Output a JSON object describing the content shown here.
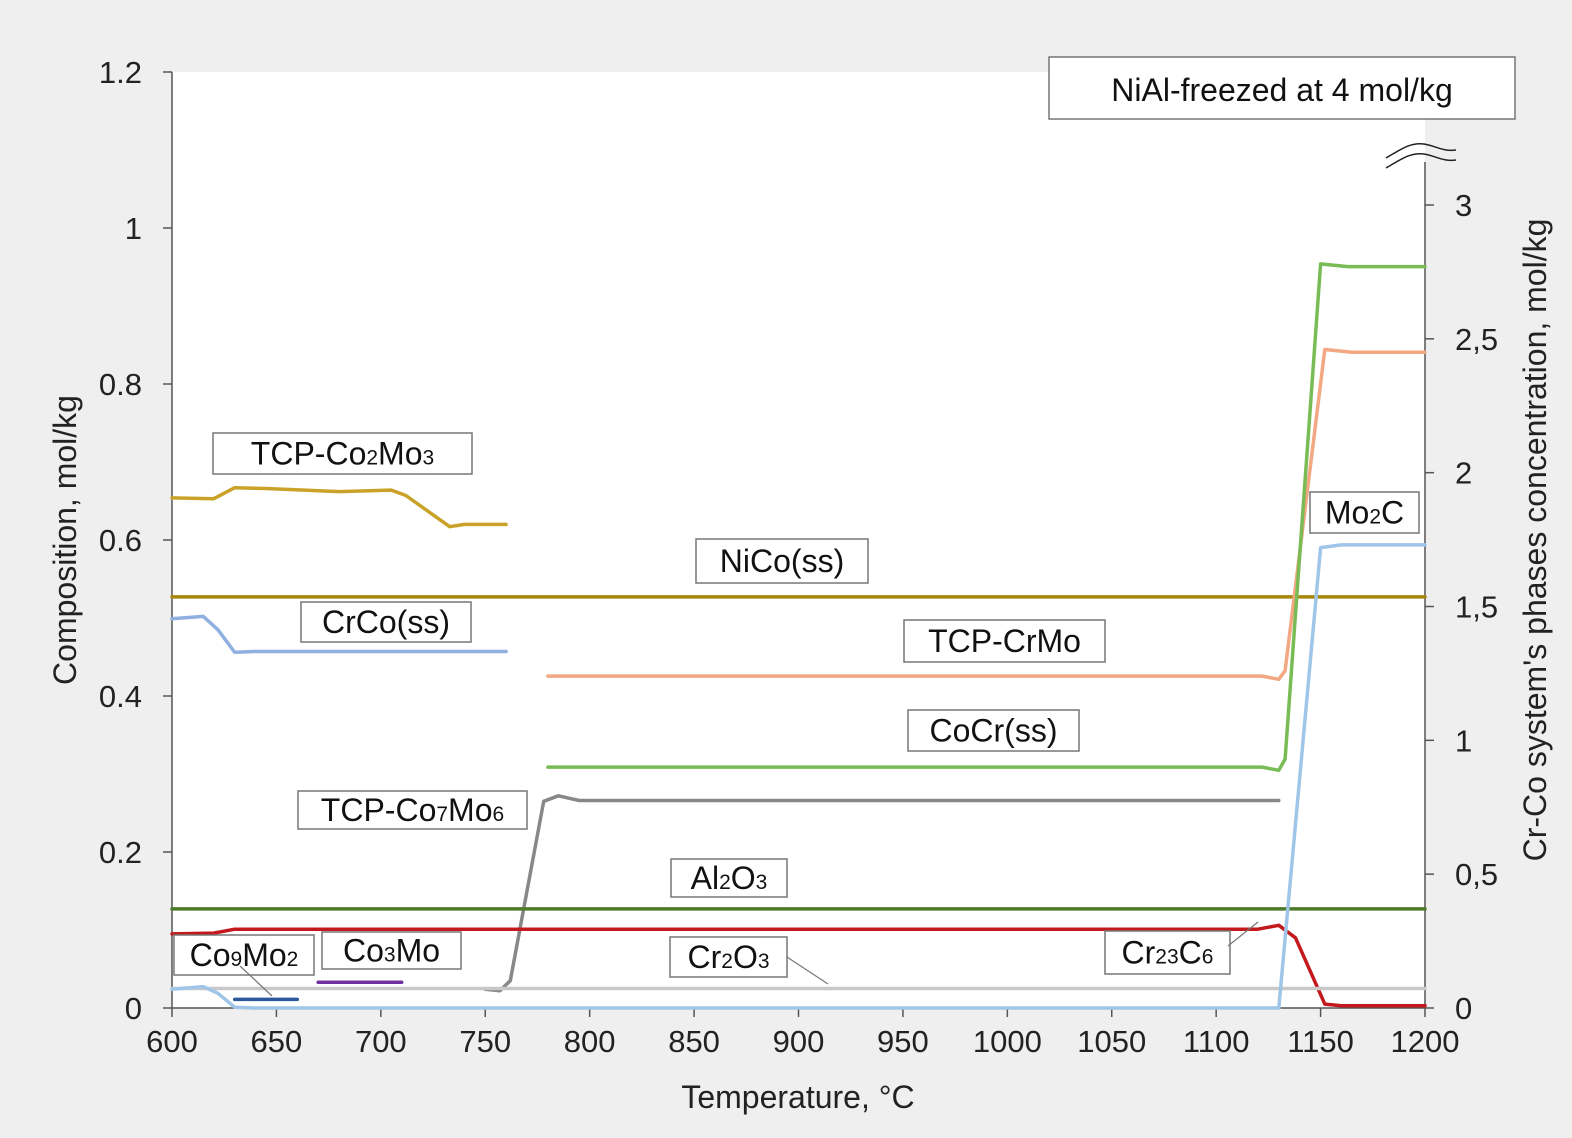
{
  "chart_data": {
    "type": "line",
    "xlabel": "Temperature, °C",
    "ylabel": "Composition, mol/kg",
    "y2label": "Cr-Co system's phases concentration, mol/kg",
    "xlim": [
      600,
      1200
    ],
    "ylim": [
      0,
      1.2
    ],
    "y2lim": [
      0,
      3
    ],
    "x_ticks": [
      "600",
      "650",
      "700",
      "750",
      "800",
      "850",
      "900",
      "950",
      "1000",
      "1050",
      "1100",
      "1150",
      "1200"
    ],
    "y_ticks": [
      "0",
      "0.2",
      "0.4",
      "0.6",
      "0.8",
      "1",
      "1.2"
    ],
    "y2_ticks": [
      "0",
      "0,5",
      "1",
      "1,5",
      "2",
      "2,5",
      "3"
    ],
    "grid": false,
    "annotation": "NiAl-freezed at 4 mol/kg",
    "series": [
      {
        "name": "TCP-Co2Mo3",
        "axis": "left",
        "color": "#c9a227",
        "points": [
          [
            600,
            0.654
          ],
          [
            620,
            0.653
          ],
          [
            630,
            0.667
          ],
          [
            645,
            0.666
          ],
          [
            680,
            0.662
          ],
          [
            705,
            0.664
          ],
          [
            712,
            0.657
          ],
          [
            733,
            0.617
          ],
          [
            740,
            0.62
          ],
          [
            760,
            0.62
          ]
        ]
      },
      {
        "name": "NiCo(ss)",
        "axis": "left",
        "color": "#a8860c",
        "points": [
          [
            600,
            0.527
          ],
          [
            1200,
            0.527
          ]
        ]
      },
      {
        "name": "CrCo(ss)",
        "axis": "left",
        "color": "#8fb0e0",
        "points": [
          [
            600,
            0.499
          ],
          [
            615,
            0.502
          ],
          [
            622,
            0.485
          ],
          [
            630,
            0.456
          ],
          [
            640,
            0.457
          ],
          [
            760,
            0.457
          ]
        ]
      },
      {
        "name": "TCP-CrMo",
        "axis": "right",
        "color": "#f2a882",
        "points": [
          [
            780,
            1.24
          ],
          [
            1122,
            1.24
          ],
          [
            1130,
            1.228
          ],
          [
            1133,
            1.26
          ],
          [
            1152,
            2.46
          ],
          [
            1165,
            2.45
          ],
          [
            1200,
            2.45
          ]
        ]
      },
      {
        "name": "CoCr(ss)",
        "axis": "right",
        "color": "#79bb55",
        "points": [
          [
            780,
            0.9
          ],
          [
            1122,
            0.9
          ],
          [
            1130,
            0.888
          ],
          [
            1133,
            0.93
          ],
          [
            1150,
            2.78
          ],
          [
            1163,
            2.77
          ],
          [
            1200,
            2.77
          ]
        ]
      },
      {
        "name": "TCP-Co7Mo6",
        "axis": "left",
        "color": "#888888",
        "points": [
          [
            750,
            0.024
          ],
          [
            757,
            0.022
          ],
          [
            762,
            0.035
          ],
          [
            778,
            0.265
          ],
          [
            785,
            0.272
          ],
          [
            795,
            0.266
          ],
          [
            1130,
            0.266
          ]
        ]
      },
      {
        "name": "Al2O3",
        "axis": "left",
        "color": "#4f7a2c",
        "points": [
          [
            600,
            0.127
          ],
          [
            1200,
            0.127
          ]
        ]
      },
      {
        "name": "Cr23C6",
        "axis": "left",
        "color": "#c3191c",
        "points": [
          [
            600,
            0.095
          ],
          [
            620,
            0.096
          ],
          [
            630,
            0.101
          ],
          [
            1120,
            0.101
          ],
          [
            1130,
            0.106
          ],
          [
            1138,
            0.09
          ],
          [
            1152,
            0.005
          ],
          [
            1160,
            0.003
          ],
          [
            1200,
            0.003
          ]
        ]
      },
      {
        "name": "Cr2O3",
        "axis": "left",
        "color": "#c8c8c8",
        "points": [
          [
            600,
            0.025
          ],
          [
            1200,
            0.025
          ]
        ]
      },
      {
        "name": "Co9Mo2",
        "axis": "left",
        "color": "#2a5a9c",
        "points": [
          [
            630,
            0.011
          ],
          [
            660,
            0.011
          ]
        ]
      },
      {
        "name": "Co3Mo",
        "axis": "left",
        "color": "#7030a0",
        "points": [
          [
            670,
            0.033
          ],
          [
            710,
            0.033
          ]
        ]
      },
      {
        "name": "Mo2C",
        "axis": "right",
        "color": "#9fc5e8",
        "points": [
          [
            600,
            0.07
          ],
          [
            615,
            0.08
          ],
          [
            622,
            0.055
          ],
          [
            630,
            0.003
          ],
          [
            640,
            0.0
          ],
          [
            1130,
            0.0
          ],
          [
            1150,
            1.72
          ],
          [
            1160,
            1.73
          ],
          [
            1200,
            1.73
          ]
        ]
      }
    ]
  },
  "labels": {
    "tcp_co2mo3": {
      "a": "TCP-Co",
      "s1": "2",
      "b": "Mo",
      "s2": "3"
    },
    "nico": "NiCo(ss)",
    "crco": "CrCo(ss)",
    "tcp_crmo": "TCP-CrMo",
    "cocr": "CoCr(ss)",
    "tcp_co7mo6": {
      "a": "TCP-Co",
      "s1": "7",
      "b": "Mo",
      "s2": "6"
    },
    "al2o3": {
      "a": "Al",
      "s1": "2",
      "b": "O",
      "s2": "3"
    },
    "co9mo2": {
      "a": "Co",
      "s1": "9",
      "b": "Mo",
      "s2": "2"
    },
    "co3mo": {
      "a": "Co",
      "s1": "3",
      "b": "Mo"
    },
    "cr2o3": {
      "a": "Cr",
      "s1": "2",
      "b": "O",
      "s2": "3"
    },
    "cr23c6": {
      "a": "Cr",
      "s1": "23",
      "b": "C",
      "s2": "6"
    },
    "mo2c": {
      "a": "Mo",
      "s1": "2",
      "b": "C"
    }
  }
}
